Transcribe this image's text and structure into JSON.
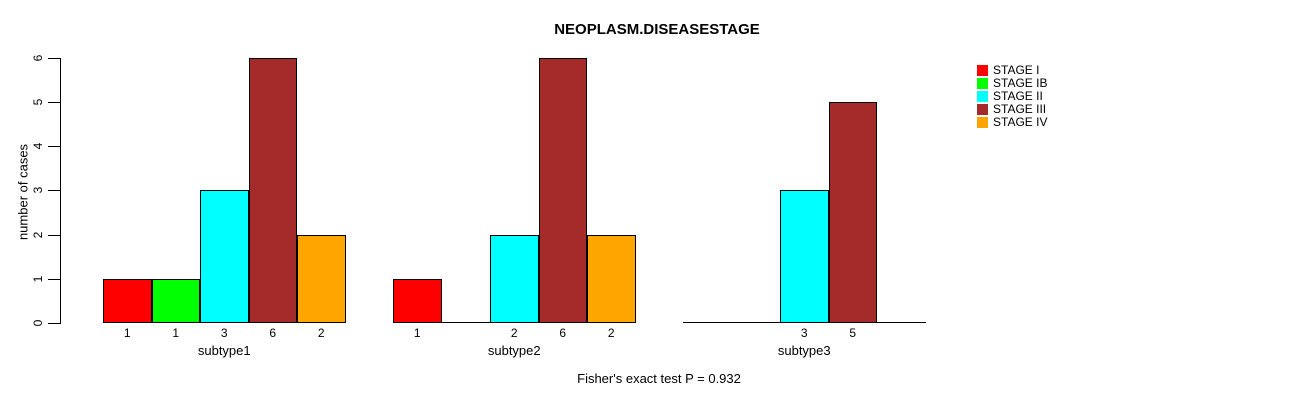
{
  "chart_data": {
    "type": "bar",
    "title": "NEOPLASM.DISEASESTAGE",
    "ylabel": "number of cases",
    "xlabel": "",
    "categories": [
      "subtype1",
      "subtype2",
      "subtype3"
    ],
    "series": [
      {
        "name": "STAGE I",
        "color": "#FF0000",
        "values": [
          1,
          1,
          0
        ]
      },
      {
        "name": "STAGE IB",
        "color": "#00FF00",
        "values": [
          1,
          0,
          0
        ]
      },
      {
        "name": "STAGE II",
        "color": "#00FFFF",
        "values": [
          3,
          2,
          3
        ]
      },
      {
        "name": "STAGE III",
        "color": "#A52A2A",
        "values": [
          6,
          6,
          5
        ]
      },
      {
        "name": "STAGE IV",
        "color": "#FFA500",
        "values": [
          2,
          2,
          0
        ]
      }
    ],
    "bar_value_labels": [
      [
        "1",
        "1",
        "3",
        "6",
        "2"
      ],
      [
        "1",
        "",
        "2",
        "6",
        "2"
      ],
      [
        "",
        "",
        "3",
        "5",
        ""
      ]
    ],
    "ylim": [
      0,
      6
    ],
    "yticks": [
      "0",
      "1",
      "2",
      "3",
      "4",
      "5",
      "6"
    ],
    "grid": false,
    "legend_position": "right",
    "legend_entries": [
      "STAGE I",
      "STAGE IB",
      "STAGE II",
      "STAGE III",
      "STAGE IV"
    ],
    "annotation": "Fisher's exact test P = 0.932",
    "bar_border_color": "#000000",
    "axis_color": "#000000"
  }
}
